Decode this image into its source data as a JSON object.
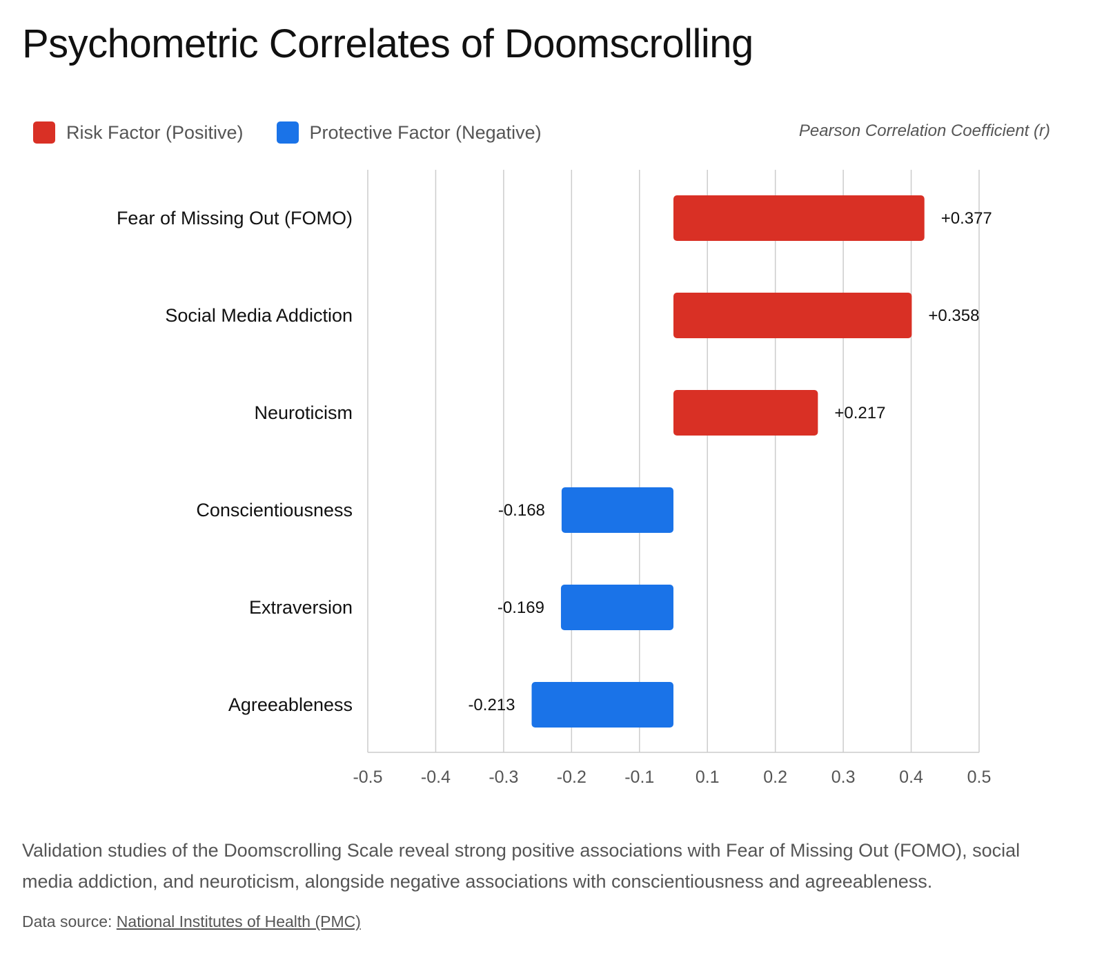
{
  "title": "Psychometric Correlates of Doomscrolling",
  "legend": {
    "risk_label": "Risk Factor (Positive)",
    "protective_label": "Protective Factor (Negative)"
  },
  "colors": {
    "risk": "#d93025",
    "protective": "#1a73e8",
    "grid": "#cccccc",
    "text": "#111111",
    "muted": "#555555"
  },
  "description": "Validation studies of the Doomscrolling Scale reveal strong positive associations with Fear of Missing Out (FOMO), social media addiction, and neuroticism, alongside negative associations with conscientiousness and agreeableness.",
  "source": {
    "prefix": "Data source: ",
    "link_text": "National Institutes of Health (PMC)"
  },
  "chart_data": {
    "type": "bar",
    "orientation": "horizontal",
    "title": "Psychometric Correlates of Doomscrolling",
    "xlabel": "Pearson Correlation Coefficient (r)",
    "ylabel": "",
    "xlim": [
      -0.5,
      0.5
    ],
    "xticks": [
      -0.5,
      -0.4,
      -0.3,
      -0.2,
      -0.1,
      0.1,
      0.2,
      0.3,
      0.4,
      0.5
    ],
    "xtick_labels": [
      "-0.5",
      "-0.4",
      "-0.3",
      "-0.2",
      "-0.1",
      "0.1",
      "0.2",
      "0.3",
      "0.4",
      "0.5"
    ],
    "grid": true,
    "legend_position": "top-left",
    "categories": [
      "Fear of Missing Out (FOMO)",
      "Social Media Addiction",
      "Neuroticism",
      "Conscientiousness",
      "Extraversion",
      "Agreeableness"
    ],
    "values": [
      0.377,
      0.358,
      0.217,
      -0.168,
      -0.169,
      -0.213
    ],
    "value_labels": [
      "+0.377",
      "+0.358",
      "+0.217",
      "-0.168",
      "-0.169",
      "-0.213"
    ],
    "series": [
      {
        "name": "Risk Factor (Positive)",
        "categories": [
          "Fear of Missing Out (FOMO)",
          "Social Media Addiction",
          "Neuroticism"
        ]
      },
      {
        "name": "Protective Factor (Negative)",
        "categories": [
          "Conscientiousness",
          "Extraversion",
          "Agreeableness"
        ]
      }
    ]
  }
}
